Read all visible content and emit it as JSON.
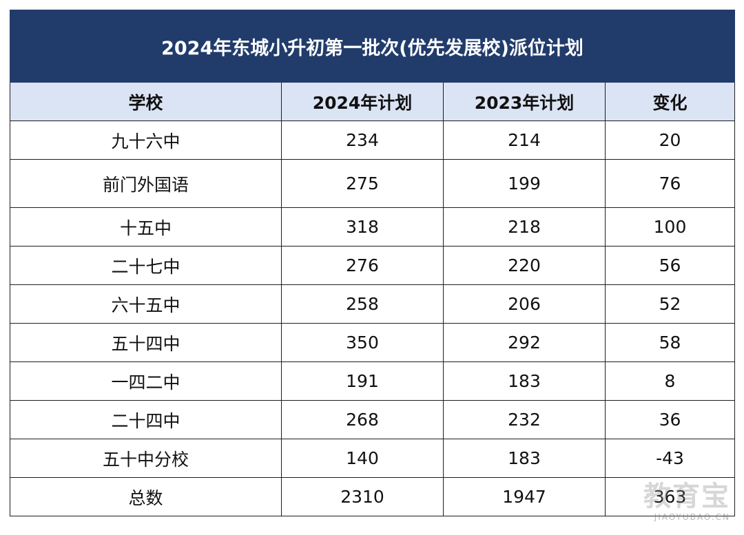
{
  "title": "2024年东城小升初第一批次(优先发展校)派位计划",
  "headers": [
    "学校",
    "2024年计划",
    "2023年计划",
    "变化"
  ],
  "rows": [
    {
      "school": "九十六中",
      "plan2024": "234",
      "plan2023": "214",
      "change": "20"
    },
    {
      "school": "前门外国语",
      "plan2024": "275",
      "plan2023": "199",
      "change": "76"
    },
    {
      "school": "十五中",
      "plan2024": "318",
      "plan2023": "218",
      "change": "100"
    },
    {
      "school": "二十七中",
      "plan2024": "276",
      "plan2023": "220",
      "change": "56"
    },
    {
      "school": "六十五中",
      "plan2024": "258",
      "plan2023": "206",
      "change": "52"
    },
    {
      "school": "五十四中",
      "plan2024": "350",
      "plan2023": "292",
      "change": "58"
    },
    {
      "school": "一四二中",
      "plan2024": "191",
      "plan2023": "183",
      "change": "8"
    },
    {
      "school": "二十四中",
      "plan2024": "268",
      "plan2023": "232",
      "change": "36"
    },
    {
      "school": "五十中分校",
      "plan2024": "140",
      "plan2023": "183",
      "change": "-43"
    },
    {
      "school": "总数",
      "plan2024": "2310",
      "plan2023": "1947",
      "change": "363"
    }
  ],
  "watermark": {
    "main": "教育宝",
    "sub": "JIAOYUBAO.CN"
  },
  "colors": {
    "title_bg": "#213c6b",
    "header_bg": "#dbe4f4"
  }
}
